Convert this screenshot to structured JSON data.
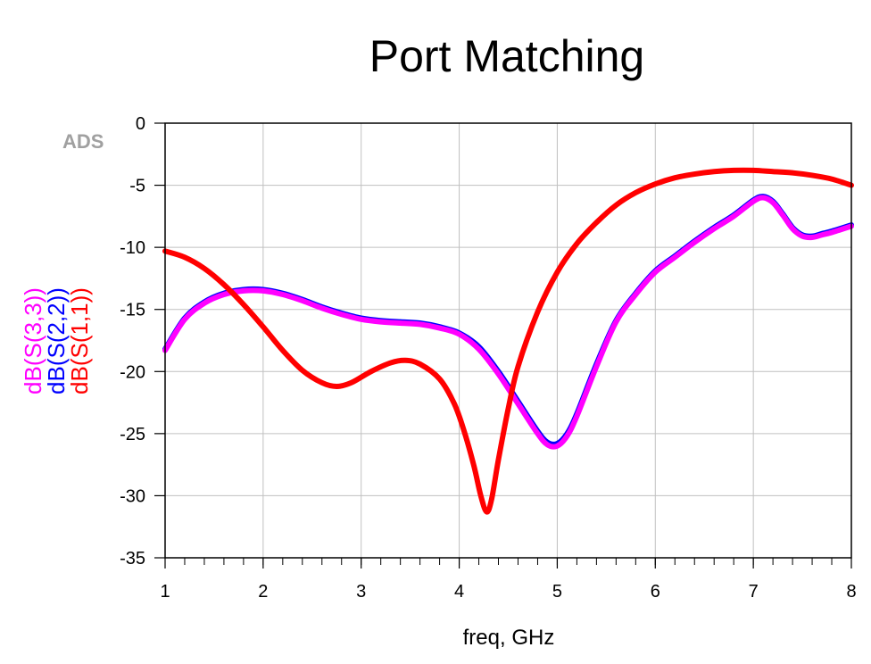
{
  "watermark": "ADS",
  "chart_data": {
    "type": "line",
    "title": "Port Matching",
    "xlabel": "freq, GHz",
    "xlim": [
      1,
      8
    ],
    "ylim": [
      -35,
      0
    ],
    "xticks": [
      "1",
      "2",
      "3",
      "4",
      "5",
      "6",
      "7",
      "8"
    ],
    "yticks": [
      "0",
      "-5",
      "-10",
      "-15",
      "-20",
      "-25",
      "-30",
      "-35"
    ],
    "grid": true,
    "series": [
      {
        "name": "dB(S(3,3))",
        "color": "#ff00ff",
        "x": [
          1.0,
          1.2,
          1.4,
          1.6,
          1.8,
          2.0,
          2.2,
          2.4,
          2.6,
          2.8,
          3.0,
          3.2,
          3.4,
          3.6,
          3.8,
          4.0,
          4.2,
          4.4,
          4.6,
          4.8,
          4.9,
          5.0,
          5.1,
          5.2,
          5.4,
          5.6,
          5.8,
          6.0,
          6.2,
          6.4,
          6.6,
          6.8,
          7.0,
          7.1,
          7.2,
          7.3,
          7.4,
          7.5,
          7.6,
          7.7,
          7.8,
          8.0
        ],
        "y": [
          -18.3,
          -15.8,
          -14.5,
          -13.8,
          -13.5,
          -13.5,
          -13.8,
          -14.3,
          -14.9,
          -15.4,
          -15.8,
          -16.0,
          -16.1,
          -16.2,
          -16.5,
          -17.0,
          -18.2,
          -20.2,
          -22.6,
          -25.0,
          -25.9,
          -26.0,
          -25.2,
          -23.6,
          -19.6,
          -16.0,
          -13.8,
          -12.0,
          -10.8,
          -9.6,
          -8.5,
          -7.5,
          -6.3,
          -6.0,
          -6.4,
          -7.4,
          -8.5,
          -9.1,
          -9.2,
          -9.0,
          -8.8,
          -8.3
        ]
      },
      {
        "name": "dB(S(2,2))",
        "color": "#0000ff",
        "x": [
          1.0,
          1.2,
          1.4,
          1.6,
          1.8,
          2.0,
          2.2,
          2.4,
          2.6,
          2.8,
          3.0,
          3.2,
          3.4,
          3.6,
          3.8,
          4.0,
          4.2,
          4.4,
          4.6,
          4.8,
          4.9,
          5.0,
          5.1,
          5.2,
          5.4,
          5.6,
          5.8,
          6.0,
          6.2,
          6.4,
          6.6,
          6.8,
          7.0,
          7.1,
          7.2,
          7.3,
          7.4,
          7.5,
          7.6,
          7.7,
          7.8,
          8.0
        ],
        "y": [
          -18.2,
          -15.7,
          -14.4,
          -13.7,
          -13.4,
          -13.4,
          -13.7,
          -14.2,
          -14.8,
          -15.3,
          -15.7,
          -15.9,
          -16.0,
          -16.1,
          -16.4,
          -16.9,
          -18.0,
          -20.0,
          -22.4,
          -24.8,
          -25.7,
          -25.8,
          -25.0,
          -23.4,
          -19.4,
          -15.9,
          -13.7,
          -11.9,
          -10.7,
          -9.5,
          -8.4,
          -7.4,
          -6.2,
          -5.9,
          -6.3,
          -7.3,
          -8.4,
          -9.0,
          -9.1,
          -8.9,
          -8.7,
          -8.2
        ]
      },
      {
        "name": "dB(S(1,1))",
        "color": "#ff0000",
        "x": [
          1.0,
          1.2,
          1.4,
          1.6,
          1.8,
          2.0,
          2.2,
          2.4,
          2.6,
          2.75,
          2.9,
          3.1,
          3.3,
          3.45,
          3.6,
          3.8,
          3.95,
          4.05,
          4.15,
          4.22,
          4.28,
          4.33,
          4.4,
          4.5,
          4.6,
          4.8,
          5.0,
          5.2,
          5.4,
          5.6,
          5.8,
          6.0,
          6.2,
          6.4,
          6.6,
          6.8,
          7.0,
          7.2,
          7.4,
          7.6,
          7.8,
          8.0
        ],
        "y": [
          -10.3,
          -10.8,
          -11.7,
          -13.0,
          -14.6,
          -16.4,
          -18.3,
          -19.9,
          -20.9,
          -21.2,
          -20.9,
          -20.0,
          -19.3,
          -19.1,
          -19.4,
          -20.6,
          -22.6,
          -24.8,
          -27.6,
          -30.0,
          -31.3,
          -30.3,
          -27.1,
          -23.0,
          -19.6,
          -15.2,
          -12.0,
          -9.7,
          -8.0,
          -6.6,
          -5.6,
          -4.9,
          -4.4,
          -4.1,
          -3.9,
          -3.8,
          -3.8,
          -3.9,
          -4.0,
          -4.2,
          -4.5,
          -5.0
        ]
      }
    ]
  }
}
